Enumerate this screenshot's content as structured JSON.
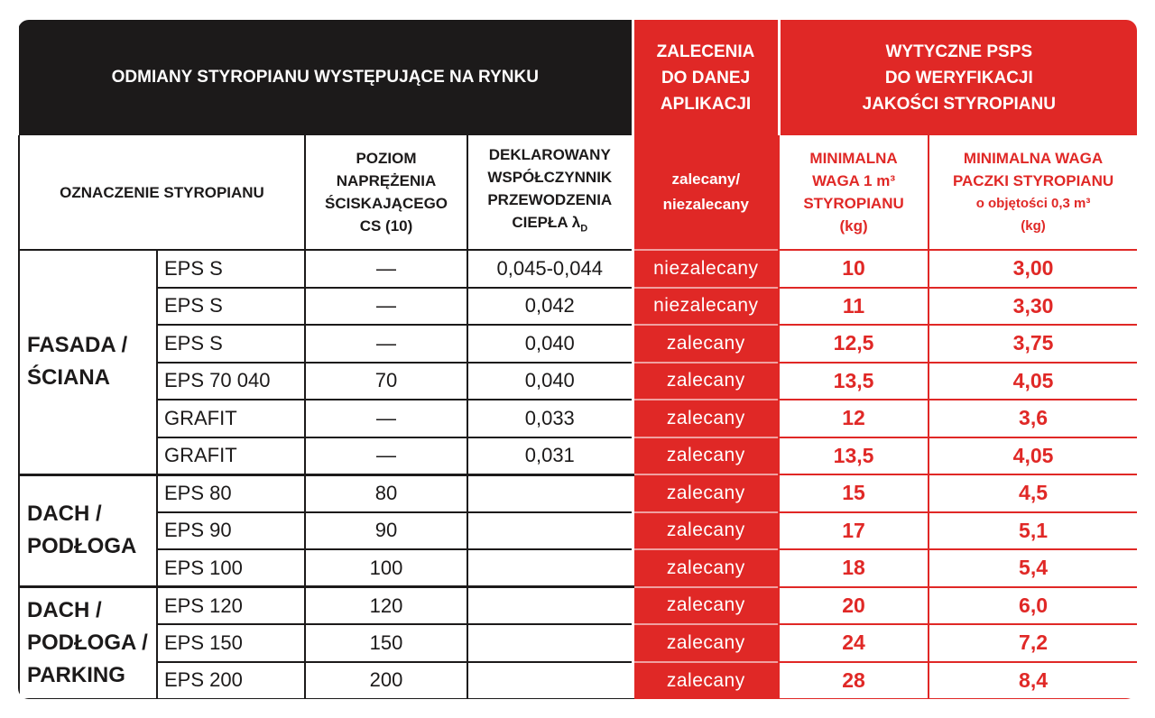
{
  "header": {
    "title": "ODMIANY STYROPIANU WYSTĘPUJĄCE NA RYNKU",
    "recommendation": [
      "ZALECENIA",
      "DO DANEJ",
      "APLIKACJI"
    ],
    "guidelines": [
      "WYTYCZNE PSPS",
      "DO WERYFIKACJI",
      "JAKOŚCI STYROPIANU"
    ]
  },
  "columns": {
    "designation": [
      "OZNACZENIE STYROPIANU"
    ],
    "stress": [
      "POZIOM",
      "NAPRĘŻENIA",
      "ŚCISKAJĄCEGO",
      "CS (10)"
    ],
    "lambda": [
      "DEKLAROWANY",
      "WSPÓŁCZYNNIK",
      "PRZEWODZENIA",
      "CIEPŁA λ"
    ],
    "lambda_sub": "D",
    "recommendation": [
      "zalecany/",
      "niezalecany"
    ],
    "weight": [
      "MINIMALNA",
      "WAGA 1 m³",
      "STYROPIANU",
      "(kg)"
    ],
    "package": [
      "MINIMALNA WAGA",
      "PACZKI STYROPIANU",
      "o objętości 0,3 m³",
      "(kg)"
    ]
  },
  "groups": [
    {
      "label": [
        "FASADA /",
        "ŚCIANA"
      ],
      "rows": [
        {
          "name": "EPS S",
          "stress": "—",
          "lambda": "0,045-0,044",
          "rec": "niezalecany",
          "weight": "10",
          "package": "3,00"
        },
        {
          "name": "EPS S",
          "stress": "—",
          "lambda": "0,042",
          "rec": "niezalecany",
          "weight": "11",
          "package": "3,30"
        },
        {
          "name": "EPS S",
          "stress": "—",
          "lambda": "0,040",
          "rec": "zalecany",
          "weight": "12,5",
          "package": "3,75"
        },
        {
          "name": "EPS 70 040",
          "stress": "70",
          "lambda": "0,040",
          "rec": "zalecany",
          "weight": "13,5",
          "package": "4,05"
        },
        {
          "name": "GRAFIT",
          "stress": "—",
          "lambda": "0,033",
          "rec": "zalecany",
          "weight": "12",
          "package": "3,6"
        },
        {
          "name": "GRAFIT",
          "stress": "—",
          "lambda": "0,031",
          "rec": "zalecany",
          "weight": "13,5",
          "package": "4,05"
        }
      ]
    },
    {
      "label": [
        "DACH /",
        "PODŁOGA"
      ],
      "rows": [
        {
          "name": "EPS 80",
          "stress": "80",
          "rec": "zalecany",
          "weight": "15",
          "package": "4,5"
        },
        {
          "name": "EPS 90",
          "stress": "90",
          "rec": "zalecany",
          "weight": "17",
          "package": "5,1"
        },
        {
          "name": "EPS 100",
          "stress": "100",
          "rec": "zalecany",
          "weight": "18",
          "package": "5,4"
        }
      ]
    },
    {
      "label": [
        "DACH /",
        "PODŁOGA /",
        "PARKING"
      ],
      "rows": [
        {
          "name": "EPS 120",
          "stress": "120",
          "rec": "zalecany",
          "weight": "20",
          "package": "6,0"
        },
        {
          "name": "EPS 150",
          "stress": "150",
          "rec": "zalecany",
          "weight": "24",
          "package": "7,2"
        },
        {
          "name": "EPS 200",
          "stress": "200",
          "rec": "zalecany",
          "weight": "28",
          "package": "8,4"
        }
      ]
    }
  ]
}
